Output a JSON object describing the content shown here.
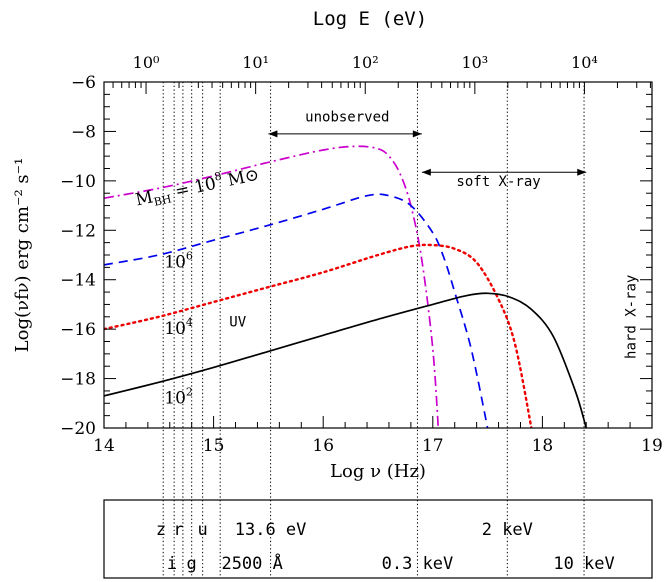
{
  "chart_data": {
    "type": "line",
    "title": "",
    "xlabel": "Log ν (Hz)",
    "ylabel": "Log(νfν) erg cm⁻² s⁻¹",
    "top_xlabel": "Log E (eV)",
    "xlim": [
      14,
      19
    ],
    "ylim": [
      -20,
      -6
    ],
    "x_ticks": [
      14,
      15,
      16,
      17,
      18,
      19
    ],
    "y_ticks": [
      -20,
      -18,
      -16,
      -14,
      -12,
      -10,
      -8,
      -6
    ],
    "top_ticks": [
      {
        "label": "10⁰",
        "energy_ev": 1
      },
      {
        "label": "10¹",
        "energy_ev": 10
      },
      {
        "label": "10²",
        "energy_ev": 100
      },
      {
        "label": "10³",
        "energy_ev": 1000
      },
      {
        "label": "10⁴",
        "energy_ev": 10000
      }
    ],
    "series": [
      {
        "name": "M_BH = 10^8 M⊙",
        "color": "#cc00cc",
        "dash": "dashdot",
        "x": [
          14.0,
          14.5,
          15.0,
          15.5,
          16.0,
          16.3,
          16.5,
          16.6,
          16.7,
          16.8,
          16.9,
          17.0,
          17.05
        ],
        "y": [
          -10.7,
          -10.3,
          -9.8,
          -9.25,
          -8.75,
          -8.6,
          -8.7,
          -9.0,
          -9.7,
          -11.0,
          -13.2,
          -16.8,
          -20.0
        ]
      },
      {
        "name": "10⁶",
        "color": "#0000ee",
        "dash": "dashed",
        "x": [
          14.0,
          14.5,
          15.0,
          15.5,
          16.0,
          16.4,
          16.6,
          16.8,
          17.0,
          17.1,
          17.2,
          17.35,
          17.5
        ],
        "y": [
          -13.4,
          -13.0,
          -12.4,
          -11.8,
          -11.15,
          -10.6,
          -10.6,
          -11.0,
          -12.1,
          -13.1,
          -14.5,
          -16.8,
          -20.0
        ]
      },
      {
        "name": "10⁴",
        "color": "#ee0000",
        "dash": "dotted",
        "x": [
          14.0,
          14.5,
          15.0,
          15.5,
          16.0,
          16.5,
          16.8,
          17.0,
          17.2,
          17.4,
          17.6,
          17.75,
          17.9
        ],
        "y": [
          -16.0,
          -15.5,
          -14.9,
          -14.3,
          -13.7,
          -13.0,
          -12.65,
          -12.6,
          -12.75,
          -13.3,
          -14.8,
          -16.6,
          -20.0
        ]
      },
      {
        "name": "10²",
        "color": "#000000",
        "dash": "solid",
        "x": [
          14.0,
          14.5,
          15.0,
          15.5,
          16.0,
          16.5,
          17.0,
          17.3,
          17.5,
          17.7,
          17.9,
          18.1,
          18.3,
          18.4
        ],
        "y": [
          -18.7,
          -18.15,
          -17.55,
          -16.9,
          -16.25,
          -15.6,
          -15.0,
          -14.65,
          -14.55,
          -14.7,
          -15.2,
          -16.3,
          -18.5,
          -20.0
        ]
      }
    ],
    "series_labels": [
      {
        "text": "M",
        "sub": "BH",
        "rest": " = 10",
        "sup": "8",
        "unit": " M⊙",
        "x": 14.3,
        "y": -11.0,
        "angle": -12
      },
      {
        "text": "10",
        "sup": "6",
        "x": 14.55,
        "y": -13.5
      },
      {
        "text": "10",
        "sup": "4",
        "x": 14.55,
        "y": -16.2
      },
      {
        "text": "10",
        "sup": "2",
        "x": 14.55,
        "y": -19.0
      }
    ],
    "annotations": [
      {
        "text": "unobserved",
        "x": 16.22,
        "y": -7.6,
        "arrow_from": 15.5,
        "arrow_to": 16.9,
        "arrow_y": -8.1
      },
      {
        "text": "soft X-ray",
        "x": 17.6,
        "y": -10.2,
        "arrow_from": 16.9,
        "arrow_to": 18.4,
        "arrow_y": -9.65
      },
      {
        "text": "UV",
        "x": 15.22,
        "y": -15.9
      },
      {
        "text": "hard X-ray",
        "x": 18.85,
        "y": -15.5,
        "rotate": -90
      }
    ],
    "vertical_lines": [
      14.54,
      14.64,
      14.72,
      14.8,
      14.9,
      15.06,
      15.52,
      16.86,
      17.68,
      18.38
    ],
    "bottom_box": {
      "row1": [
        {
          "text": "z",
          "x": 14.52
        },
        {
          "text": "r",
          "x": 14.68
        },
        {
          "text": "u",
          "x": 14.9
        },
        {
          "text": "13.6 eV",
          "x": 15.52
        },
        {
          "text": "2 keV",
          "x": 17.68
        }
      ],
      "row2": [
        {
          "text": "i",
          "x": 14.62
        },
        {
          "text": "g",
          "x": 14.8
        },
        {
          "text": "2500 Å",
          "x": 15.06
        },
        {
          "text": "0.3 keV",
          "x": 16.86
        },
        {
          "text": "10 keV",
          "x": 18.38
        }
      ]
    }
  }
}
